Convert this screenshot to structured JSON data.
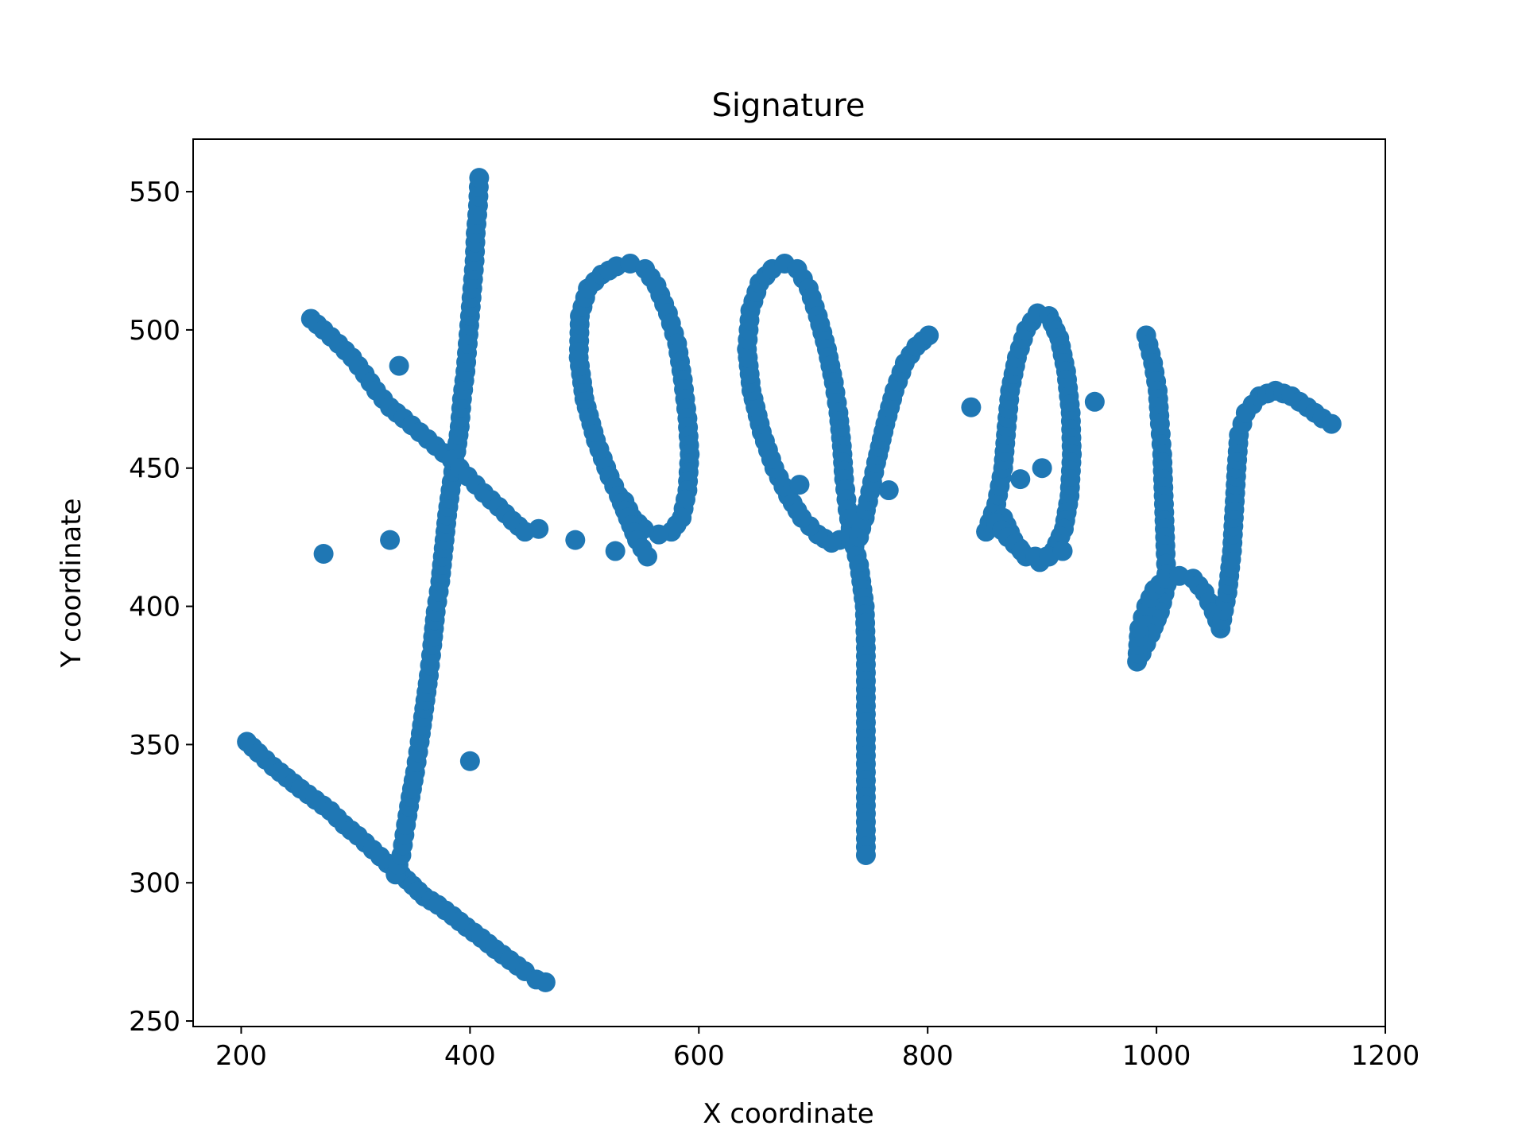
{
  "chart_data": {
    "type": "scatter",
    "title": "Signature",
    "xlabel": "X coordinate",
    "ylabel": "Y coordinate",
    "xlim": [
      158,
      1200
    ],
    "ylim": [
      248,
      569
    ],
    "xticks": [
      200,
      400,
      600,
      800,
      1000,
      1200
    ],
    "yticks": [
      250,
      300,
      350,
      400,
      450,
      500,
      550
    ],
    "grid": false,
    "marker_color": "#1f77b4",
    "strokes": [
      {
        "points": [
          [
            205,
            351
          ],
          [
            215,
            347
          ],
          [
            228,
            342
          ],
          [
            240,
            338
          ],
          [
            252,
            334
          ],
          [
            265,
            330
          ],
          [
            278,
            326
          ],
          [
            290,
            321
          ],
          [
            302,
            317
          ],
          [
            315,
            312
          ],
          [
            328,
            307
          ],
          [
            340,
            303
          ],
          [
            350,
            299
          ],
          [
            360,
            295
          ],
          [
            372,
            292
          ],
          [
            385,
            288
          ],
          [
            397,
            284
          ],
          [
            410,
            280
          ],
          [
            422,
            276
          ],
          [
            435,
            272
          ],
          [
            448,
            268
          ],
          [
            458,
            265
          ],
          [
            466,
            264
          ]
        ]
      },
      {
        "points": [
          [
            335,
            303
          ],
          [
            340,
            310
          ],
          [
            344,
            321
          ],
          [
            348,
            331
          ],
          [
            352,
            340
          ],
          [
            356,
            351
          ],
          [
            360,
            363
          ],
          [
            364,
            375
          ],
          [
            367,
            386
          ],
          [
            370,
            398
          ],
          [
            374,
            409
          ],
          [
            377,
            421
          ],
          [
            380,
            433
          ],
          [
            384,
            445
          ],
          [
            388,
            456
          ],
          [
            391,
            465
          ],
          [
            393,
            475
          ],
          [
            396,
            485
          ],
          [
            398,
            495
          ],
          [
            400,
            505
          ],
          [
            402,
            515
          ],
          [
            404,
            525
          ],
          [
            405,
            535
          ],
          [
            407,
            545
          ],
          [
            408,
            555
          ]
        ]
      },
      {
        "points": [
          [
            261,
            504
          ],
          [
            272,
            500
          ],
          [
            285,
            495
          ],
          [
            297,
            490
          ],
          [
            308,
            484
          ],
          [
            318,
            478
          ],
          [
            330,
            472
          ],
          [
            342,
            468
          ],
          [
            356,
            463
          ],
          [
            370,
            458
          ],
          [
            384,
            453
          ],
          [
            398,
            447
          ],
          [
            412,
            441
          ],
          [
            425,
            436
          ],
          [
            437,
            431
          ],
          [
            448,
            427
          ],
          [
            460,
            428
          ]
        ]
      },
      {
        "points": [
          [
            522,
            447
          ],
          [
            510,
            460
          ],
          [
            500,
            475
          ],
          [
            495,
            490
          ],
          [
            496,
            505
          ],
          [
            503,
            515
          ],
          [
            515,
            520
          ],
          [
            528,
            523
          ],
          [
            540,
            524
          ],
          [
            553,
            522
          ],
          [
            563,
            516
          ],
          [
            573,
            506
          ],
          [
            581,
            495
          ],
          [
            586,
            482
          ],
          [
            590,
            468
          ],
          [
            592,
            455
          ],
          [
            590,
            442
          ],
          [
            585,
            432
          ],
          [
            576,
            427
          ],
          [
            565,
            426
          ],
          [
            552,
            428
          ],
          [
            542,
            432
          ],
          [
            535,
            438
          ]
        ]
      },
      {
        "points": [
          [
            522,
            447
          ],
          [
            530,
            440
          ],
          [
            538,
            432
          ],
          [
            546,
            424
          ],
          [
            555,
            418
          ]
        ]
      },
      {
        "points": [
          [
            745,
            432
          ],
          [
            730,
            425
          ],
          [
            716,
            423
          ],
          [
            704,
            426
          ],
          [
            690,
            432
          ],
          [
            678,
            440
          ],
          [
            666,
            450
          ],
          [
            655,
            463
          ],
          [
            646,
            478
          ],
          [
            642,
            493
          ],
          [
            645,
            507
          ],
          [
            653,
            517
          ],
          [
            664,
            522
          ],
          [
            675,
            524
          ],
          [
            686,
            522
          ],
          [
            696,
            515
          ],
          [
            704,
            505
          ],
          [
            712,
            493
          ],
          [
            718,
            481
          ],
          [
            722,
            470
          ],
          [
            725,
            458
          ],
          [
            727,
            446
          ],
          [
            730,
            435
          ],
          [
            734,
            425
          ],
          [
            740,
            415
          ],
          [
            745,
            400
          ],
          [
            746,
            385
          ],
          [
            746,
            370
          ],
          [
            746,
            355
          ],
          [
            746,
            340
          ],
          [
            746,
            325
          ],
          [
            746,
            310
          ]
        ]
      },
      {
        "points": [
          [
            740,
            425
          ],
          [
            748,
            438
          ],
          [
            755,
            452
          ],
          [
            763,
            466
          ],
          [
            771,
            478
          ],
          [
            780,
            488
          ],
          [
            790,
            494
          ],
          [
            801,
            498
          ]
        ]
      },
      {
        "points": [
          [
            851,
            427
          ],
          [
            860,
            437
          ],
          [
            866,
            450
          ],
          [
            869,
            465
          ],
          [
            872,
            478
          ],
          [
            878,
            490
          ],
          [
            886,
            500
          ],
          [
            896,
            506
          ],
          [
            906,
            505
          ],
          [
            915,
            497
          ],
          [
            921,
            485
          ],
          [
            925,
            470
          ],
          [
            926,
            455
          ],
          [
            924,
            440
          ],
          [
            919,
            428
          ],
          [
            910,
            420
          ],
          [
            898,
            416
          ],
          [
            886,
            418
          ],
          [
            875,
            424
          ],
          [
            866,
            432
          ]
        ]
      },
      {
        "points": [
          [
            860,
            430
          ],
          [
            870,
            425
          ],
          [
            882,
            420
          ],
          [
            894,
            418
          ],
          [
            906,
            418
          ],
          [
            918,
            420
          ]
        ]
      },
      {
        "points": [
          [
            991,
            498
          ],
          [
            997,
            488
          ],
          [
            1001,
            478
          ],
          [
            1003,
            466
          ],
          [
            1005,
            455
          ],
          [
            1006,
            443
          ],
          [
            1007,
            431
          ],
          [
            1008,
            419
          ],
          [
            1009,
            408
          ],
          [
            1003,
            398
          ],
          [
            995,
            390
          ],
          [
            987,
            383
          ],
          [
            983,
            380
          ],
          [
            985,
            392
          ],
          [
            991,
            400
          ],
          [
            998,
            406
          ],
          [
            1008,
            410
          ],
          [
            1020,
            411
          ],
          [
            1032,
            410
          ],
          [
            1042,
            405
          ],
          [
            1050,
            398
          ],
          [
            1056,
            392
          ],
          [
            1062,
            405
          ],
          [
            1066,
            420
          ],
          [
            1068,
            435
          ],
          [
            1070,
            450
          ],
          [
            1072,
            462
          ],
          [
            1078,
            470
          ],
          [
            1090,
            476
          ],
          [
            1104,
            478
          ],
          [
            1118,
            476
          ],
          [
            1132,
            472
          ],
          [
            1145,
            468
          ],
          [
            1153,
            466
          ]
        ]
      },
      {
        "points": [
          [
            272,
            419
          ],
          [
            330,
            424
          ],
          [
            338,
            487
          ],
          [
            400,
            344
          ],
          [
            492,
            424
          ],
          [
            527,
            420
          ],
          [
            688,
            444
          ],
          [
            766,
            442
          ],
          [
            838,
            472
          ],
          [
            881,
            446
          ],
          [
            900,
            450
          ],
          [
            946,
            474
          ]
        ]
      }
    ]
  }
}
